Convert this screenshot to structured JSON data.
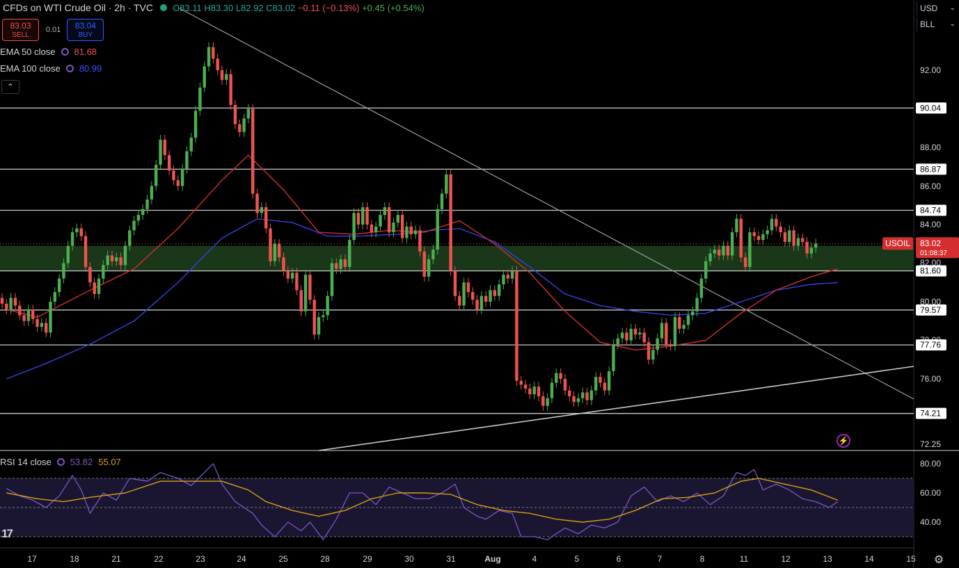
{
  "header": {
    "title": "CFDs on WTI Crude Oil · 2h · TVC",
    "open": "O83.11",
    "high": "H83.30",
    "low": "L82.92",
    "close": "C83.02",
    "change": "−0.11 (−0.13%)",
    "ext_change": "+0.45 (+0.54%)"
  },
  "trade": {
    "sell_price": "83.03",
    "sell_label": "SELL",
    "spread": "0.01",
    "buy_price": "83.04",
    "buy_label": "BUY"
  },
  "indicators": {
    "ema50_label": "EMA 50 close",
    "ema50_value": "81.68",
    "ema100_label": "EMA 100 close",
    "ema100_value": "80.99",
    "rsi_label": "RSI 14 close",
    "rsi_value": "53.82",
    "rsi_ma_value": "55.07"
  },
  "right_panel": {
    "currency": "USD",
    "unit": "BLL"
  },
  "chart_data": {
    "type": "candlestick",
    "symbol": "USOIL",
    "last_price": "83.02",
    "countdown": "01:08:37",
    "y_ticks": [
      "92.00",
      "88.00",
      "86.00",
      "84.00",
      "82.00",
      "80.00",
      "78.00",
      "76.00",
      "72.25"
    ],
    "horizontal_levels": [
      "90.04",
      "86.87",
      "84.74",
      "81.60",
      "79.57",
      "77.76",
      "74.21"
    ],
    "support_zone": [
      81.6,
      82.9
    ],
    "x_ticks": [
      "17",
      "18",
      "21",
      "22",
      "23",
      "24",
      "25",
      "28",
      "29",
      "30",
      "31",
      "Aug",
      "4",
      "5",
      "6",
      "7",
      "8",
      "11",
      "12",
      "13",
      "14",
      "15"
    ],
    "trendlines": [
      {
        "from": [
          "Jul 20",
          95.6
        ],
        "to": [
          "Aug 14",
          74.9
        ]
      },
      {
        "from": [
          "Jul 26",
          71.9
        ],
        "to": [
          "Aug 14",
          76.7
        ]
      }
    ],
    "closes": [
      79.9,
      79.6,
      80.2,
      79.8,
      79.3,
      79.0,
      79.6,
      79.1,
      78.7,
      78.9,
      78.4,
      80.0,
      80.5,
      81.2,
      82.0,
      82.9,
      83.6,
      83.8,
      83.4,
      81.8,
      81.0,
      80.4,
      81.2,
      81.9,
      82.4,
      82.1,
      82.3,
      81.9,
      82.9,
      83.7,
      84.2,
      84.5,
      84.8,
      85.3,
      86.0,
      87.1,
      88.4,
      87.6,
      86.8,
      86.3,
      86.0,
      86.9,
      87.8,
      88.5,
      89.9,
      91.1,
      92.2,
      93.2,
      92.6,
      92.0,
      91.5,
      91.8,
      90.2,
      89.2,
      88.8,
      89.5,
      90.0,
      85.6,
      84.6,
      84.9,
      83.8,
      82.1,
      83.0,
      82.3,
      81.6,
      81.2,
      81.5,
      80.6,
      79.5,
      81.4,
      80.1,
      78.3,
      79.2,
      79.3,
      80.3,
      82.0,
      81.7,
      82.2,
      81.8,
      83.2,
      84.6,
      84.0,
      84.9,
      84.0,
      83.6,
      83.9,
      84.5,
      84.9,
      83.6,
      84.1,
      84.5,
      83.3,
      83.9,
      83.5,
      83.7,
      82.6,
      81.3,
      82.2,
      82.7,
      84.8,
      85.6,
      86.6,
      81.6,
      80.3,
      79.8,
      81.0,
      80.5,
      80.1,
      79.6,
      80.3,
      80.0,
      80.6,
      80.3,
      80.9,
      81.4,
      81.2,
      81.6,
      75.9,
      75.7,
      75.5,
      75.2,
      75.6,
      75.1,
      74.6,
      75.0,
      75.8,
      76.3,
      76.0,
      75.4,
      75.1,
      74.8,
      75.0,
      75.3,
      74.9,
      75.4,
      76.1,
      75.8,
      75.4,
      76.4,
      77.8,
      78.1,
      78.4,
      78.0,
      78.6,
      78.3,
      78.4,
      77.9,
      77.0,
      77.5,
      78.1,
      78.9,
      77.8,
      77.7,
      79.2,
      78.6,
      78.8,
      79.3,
      79.5,
      80.2,
      81.2,
      82.1,
      82.5,
      82.7,
      82.4,
      82.9,
      82.4,
      83.6,
      84.3,
      82.3,
      81.8,
      83.6,
      83.4,
      83.2,
      83.5,
      83.7,
      84.3,
      83.9,
      83.6,
      83.1,
      83.7,
      82.9,
      83.3,
      83.1,
      82.5,
      82.8,
      83.02
    ],
    "ema50": [
      [
        1,
        79.6
      ],
      [
        8,
        79.2
      ],
      [
        20,
        80.6
      ],
      [
        30,
        81.7
      ],
      [
        40,
        83.8
      ],
      [
        50,
        86.3
      ],
      [
        56,
        87.6
      ],
      [
        64,
        85.8
      ],
      [
        72,
        83.6
      ],
      [
        80,
        83.5
      ],
      [
        88,
        83.7
      ],
      [
        96,
        83.6
      ],
      [
        104,
        84.2
      ],
      [
        112,
        83.0
      ],
      [
        120,
        81.5
      ],
      [
        128,
        79.5
      ],
      [
        136,
        77.9
      ],
      [
        144,
        77.5
      ],
      [
        152,
        77.7
      ],
      [
        160,
        78.0
      ],
      [
        168,
        79.4
      ],
      [
        176,
        80.6
      ],
      [
        184,
        81.3
      ],
      [
        190,
        81.7
      ]
    ],
    "ema100": [
      [
        1,
        76.0
      ],
      [
        10,
        76.8
      ],
      [
        20,
        77.8
      ],
      [
        30,
        79.0
      ],
      [
        40,
        81.0
      ],
      [
        50,
        83.3
      ],
      [
        58,
        84.3
      ],
      [
        66,
        84.1
      ],
      [
        74,
        83.4
      ],
      [
        82,
        83.4
      ],
      [
        90,
        83.5
      ],
      [
        98,
        83.7
      ],
      [
        104,
        83.8
      ],
      [
        112,
        83.1
      ],
      [
        120,
        81.8
      ],
      [
        128,
        80.4
      ],
      [
        136,
        79.8
      ],
      [
        144,
        79.5
      ],
      [
        152,
        79.3
      ],
      [
        160,
        79.4
      ],
      [
        168,
        80.0
      ],
      [
        176,
        80.6
      ],
      [
        184,
        80.9
      ],
      [
        190,
        81.0
      ]
    ],
    "rsi_ticks": [
      "80.00",
      "60.00",
      "40.00"
    ],
    "rsi_band": [
      30,
      70
    ],
    "rsi": [
      [
        1,
        63
      ],
      [
        4,
        58
      ],
      [
        7,
        55
      ],
      [
        10,
        50
      ],
      [
        13,
        58
      ],
      [
        16,
        72
      ],
      [
        18,
        62
      ],
      [
        20,
        46
      ],
      [
        23,
        60
      ],
      [
        26,
        55
      ],
      [
        29,
        70
      ],
      [
        33,
        68
      ],
      [
        36,
        74
      ],
      [
        40,
        70
      ],
      [
        43,
        65
      ],
      [
        46,
        74
      ],
      [
        48,
        80
      ],
      [
        50,
        66
      ],
      [
        53,
        54
      ],
      [
        57,
        46
      ],
      [
        59,
        38
      ],
      [
        62,
        30
      ],
      [
        65,
        40
      ],
      [
        68,
        34
      ],
      [
        70,
        40
      ],
      [
        73,
        28
      ],
      [
        76,
        42
      ],
      [
        79,
        60
      ],
      [
        82,
        60
      ],
      [
        85,
        52
      ],
      [
        88,
        64
      ],
      [
        91,
        60
      ],
      [
        94,
        56
      ],
      [
        97,
        56
      ],
      [
        100,
        60
      ],
      [
        103,
        66
      ],
      [
        105,
        50
      ],
      [
        108,
        44
      ],
      [
        110,
        42
      ],
      [
        113,
        48
      ],
      [
        116,
        46
      ],
      [
        118,
        30
      ],
      [
        121,
        30
      ],
      [
        124,
        28
      ],
      [
        128,
        36
      ],
      [
        131,
        32
      ],
      [
        134,
        38
      ],
      [
        137,
        36
      ],
      [
        140,
        40
      ],
      [
        143,
        58
      ],
      [
        146,
        64
      ],
      [
        149,
        54
      ],
      [
        152,
        58
      ],
      [
        155,
        54
      ],
      [
        158,
        60
      ],
      [
        161,
        52
      ],
      [
        164,
        58
      ],
      [
        167,
        74
      ],
      [
        169,
        72
      ],
      [
        171,
        76
      ],
      [
        173,
        62
      ],
      [
        176,
        66
      ],
      [
        179,
        62
      ],
      [
        182,
        56
      ],
      [
        185,
        54
      ],
      [
        188,
        50
      ],
      [
        190,
        54
      ]
    ],
    "rsi_ma": [
      [
        1,
        60
      ],
      [
        8,
        56
      ],
      [
        14,
        54
      ],
      [
        20,
        57
      ],
      [
        28,
        60
      ],
      [
        36,
        68
      ],
      [
        44,
        68
      ],
      [
        50,
        68
      ],
      [
        56,
        62
      ],
      [
        60,
        54
      ],
      [
        66,
        48
      ],
      [
        72,
        44
      ],
      [
        78,
        48
      ],
      [
        84,
        56
      ],
      [
        90,
        60
      ],
      [
        96,
        60
      ],
      [
        102,
        59
      ],
      [
        108,
        52
      ],
      [
        114,
        48
      ],
      [
        120,
        46
      ],
      [
        126,
        42
      ],
      [
        132,
        40
      ],
      [
        138,
        42
      ],
      [
        144,
        48
      ],
      [
        150,
        56
      ],
      [
        156,
        57
      ],
      [
        162,
        60
      ],
      [
        168,
        68
      ],
      [
        172,
        70
      ],
      [
        178,
        66
      ],
      [
        184,
        62
      ],
      [
        190,
        55
      ]
    ]
  }
}
